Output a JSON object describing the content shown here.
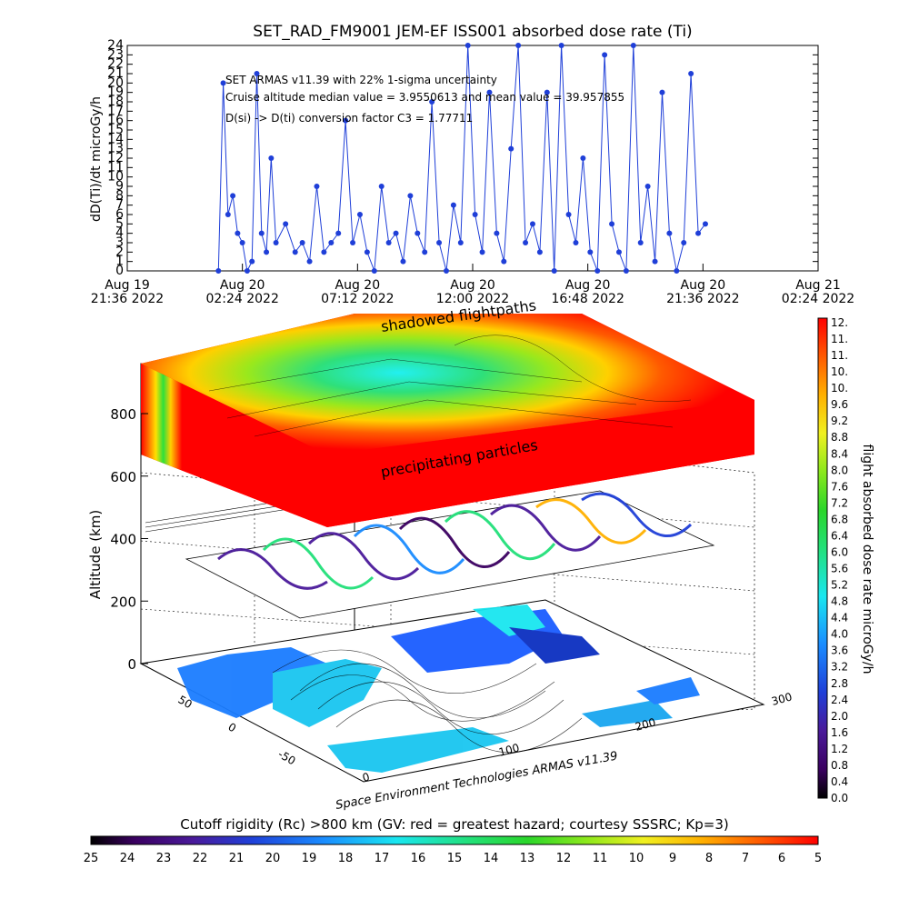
{
  "chart_data": [
    {
      "type": "line",
      "title": "SET_RAD_FM9001  JEM-EF ISS001 absorbed dose rate (Ti)",
      "ylabel": "dD(Ti)/dt microGy/h",
      "xlabel": "",
      "ylim": [
        0,
        24
      ],
      "y_ticks": [
        "0",
        "1",
        "2",
        "3",
        "4",
        "5",
        "6",
        "7",
        "8",
        "9",
        "10",
        "11",
        "12",
        "13",
        "14",
        "15",
        "16",
        "17",
        "18",
        "19",
        "20",
        "21",
        "22",
        "23",
        "24"
      ],
      "x_ticks": [
        {
          "line1": "Aug 19",
          "line2": "21:36 2022"
        },
        {
          "line1": "Aug 20",
          "line2": "02:24 2022"
        },
        {
          "line1": "Aug 20",
          "line2": "07:12 2022"
        },
        {
          "line1": "Aug 20",
          "line2": "12:00 2022"
        },
        {
          "line1": "Aug 20",
          "line2": "16:48 2022"
        },
        {
          "line1": "Aug 20",
          "line2": "21:36 2022"
        },
        {
          "line1": "Aug 21",
          "line2": "02:24 2022"
        }
      ],
      "x_range_hours": [
        0,
        28.8
      ],
      "annotations": [
        "SET ARMAS v11.39 with 22% 1-sigma uncertainty",
        "Cruise altitude median value = 3.9550613 and mean value = 39.957855",
        "D(si) -> D(ti) conversion factor C3 = 1.77711"
      ],
      "series": [
        {
          "color": "#1f3fd8",
          "x_hours": [
            3.8,
            4.0,
            4.2,
            4.4,
            4.6,
            4.8,
            5.0,
            5.2,
            5.4,
            5.6,
            5.8,
            6.0,
            6.2,
            6.6,
            7.0,
            7.3,
            7.6,
            7.9,
            8.2,
            8.5,
            8.8,
            9.1,
            9.4,
            9.7,
            10.0,
            10.3,
            10.6,
            10.9,
            11.2,
            11.5,
            11.8,
            12.1,
            12.4,
            12.7,
            13.0,
            13.3,
            13.6,
            13.9,
            14.2,
            14.5,
            14.8,
            15.1,
            15.4,
            15.7,
            16.0,
            16.3,
            16.6,
            16.9,
            17.2,
            17.5,
            17.8,
            18.1,
            18.4,
            18.7,
            19.0,
            19.3,
            19.6,
            19.9,
            20.2,
            20.5,
            20.8,
            21.1,
            21.4,
            21.7,
            22.0,
            22.3,
            22.6,
            22.9,
            23.2,
            23.5,
            23.8,
            24.1
          ],
          "values": [
            0,
            20,
            6,
            8,
            4,
            3,
            0,
            1,
            21,
            4,
            2,
            12,
            3,
            5,
            2,
            3,
            1,
            9,
            2,
            3,
            4,
            16,
            3,
            6,
            2,
            0,
            9,
            3,
            4,
            1,
            8,
            4,
            2,
            18,
            3,
            0,
            7,
            3,
            24,
            6,
            2,
            19,
            4,
            1,
            13,
            24,
            3,
            5,
            2,
            19,
            0,
            24,
            6,
            3,
            12,
            2,
            0,
            23,
            5,
            2,
            0,
            24,
            3,
            9,
            1,
            19,
            4,
            0,
            3,
            21,
            4,
            5
          ]
        }
      ]
    },
    {
      "type": "heatmap",
      "ylabel": "Altitude (km)",
      "y_ticks": [
        "0",
        "200",
        "400",
        "600",
        "800"
      ],
      "x_ticks": [
        "0",
        "100",
        "200",
        "300"
      ],
      "depth_ticks": [
        "-50",
        "0",
        "50"
      ],
      "annotations": [
        "shadowed flightpaths",
        "precipitating particles"
      ],
      "footer": "Space Environment Technologies ARMAS v11.39",
      "colorbar_right": {
        "label": "flight absorbed dose rate microGy/h",
        "ticks": [
          "12.",
          "11.",
          "11.",
          "10.",
          "10.",
          "9.6",
          "9.2",
          "8.8",
          "8.4",
          "8.0",
          "7.6",
          "7.2",
          "6.8",
          "6.4",
          "6.0",
          "5.6",
          "5.2",
          "4.8",
          "4.4",
          "4.0",
          "3.6",
          "3.2",
          "2.8",
          "2.4",
          "2.0",
          "1.6",
          "1.2",
          "0.8",
          "0.4",
          "0.0"
        ]
      },
      "colorbar_bottom": {
        "label": "Cutoff rigidity (Rc) >800 km (GV: red = greatest hazard; courtesy SSSRC; Kp=3)",
        "ticks": [
          "25",
          "24",
          "23",
          "22",
          "21",
          "20",
          "19",
          "18",
          "17",
          "16",
          "15",
          "14",
          "13",
          "12",
          "11",
          "10",
          "9",
          "8",
          "7",
          "6",
          "5"
        ]
      }
    }
  ]
}
